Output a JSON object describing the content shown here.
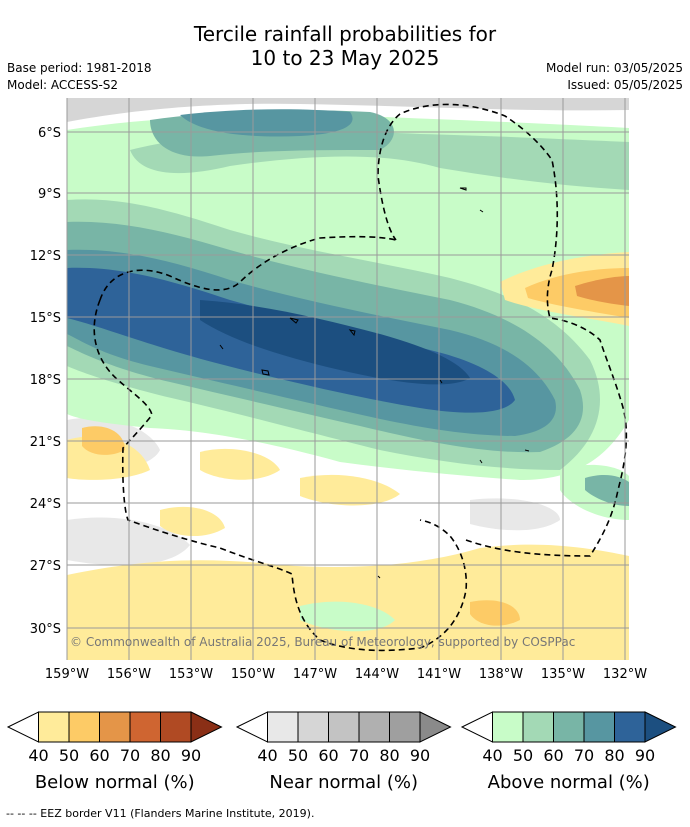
{
  "title_line1": "Tercile rainfall probabilities for",
  "title_line2": "10 to 23 May 2025",
  "meta_left": {
    "base_period": "Base period: 1981-2018",
    "model": "Model: ACCESS-S2"
  },
  "meta_right": {
    "model_run": "Model run: 03/05/2025",
    "issued": "Issued: 05/05/2025"
  },
  "map": {
    "lat_ticks": [
      "6°S",
      "9°S",
      "12°S",
      "15°S",
      "18°S",
      "21°S",
      "24°S",
      "27°S",
      "30°S"
    ],
    "lon_ticks": [
      "159°W",
      "156°W",
      "153°W",
      "150°W",
      "147°W",
      "144°W",
      "141°W",
      "138°W",
      "135°W",
      "132°W"
    ],
    "copyright": "© Commonwealth of Australia 2025, Bureau of Meteorology, supported by COSPPac"
  },
  "legends": [
    {
      "title": "Below normal (%)",
      "ticks": [
        "40",
        "50",
        "60",
        "70",
        "80",
        "90"
      ],
      "colors": [
        "#ffffff",
        "#ffeb9a",
        "#fdcb66",
        "#e49548",
        "#cf6531",
        "#b04a23",
        "#8a2f16"
      ]
    },
    {
      "title": "Near normal (%)",
      "ticks": [
        "40",
        "50",
        "60",
        "70",
        "80",
        "90"
      ],
      "colors": [
        "#ffffff",
        "#e8e8e8",
        "#d6d6d6",
        "#c3c3c3",
        "#b0b0b0",
        "#9f9f9f",
        "#8a8a8a"
      ]
    },
    {
      "title": "Above normal (%)",
      "ticks": [
        "40",
        "50",
        "60",
        "70",
        "80",
        "90"
      ],
      "colors": [
        "#ffffff",
        "#c8fcc8",
        "#a3d9b5",
        "#78b5a6",
        "#5796a1",
        "#2e6399",
        "#1c4f80"
      ]
    }
  ],
  "footnote": "-- -- -- EEZ border V11 (Flanders Marine Institute, 2019)."
}
